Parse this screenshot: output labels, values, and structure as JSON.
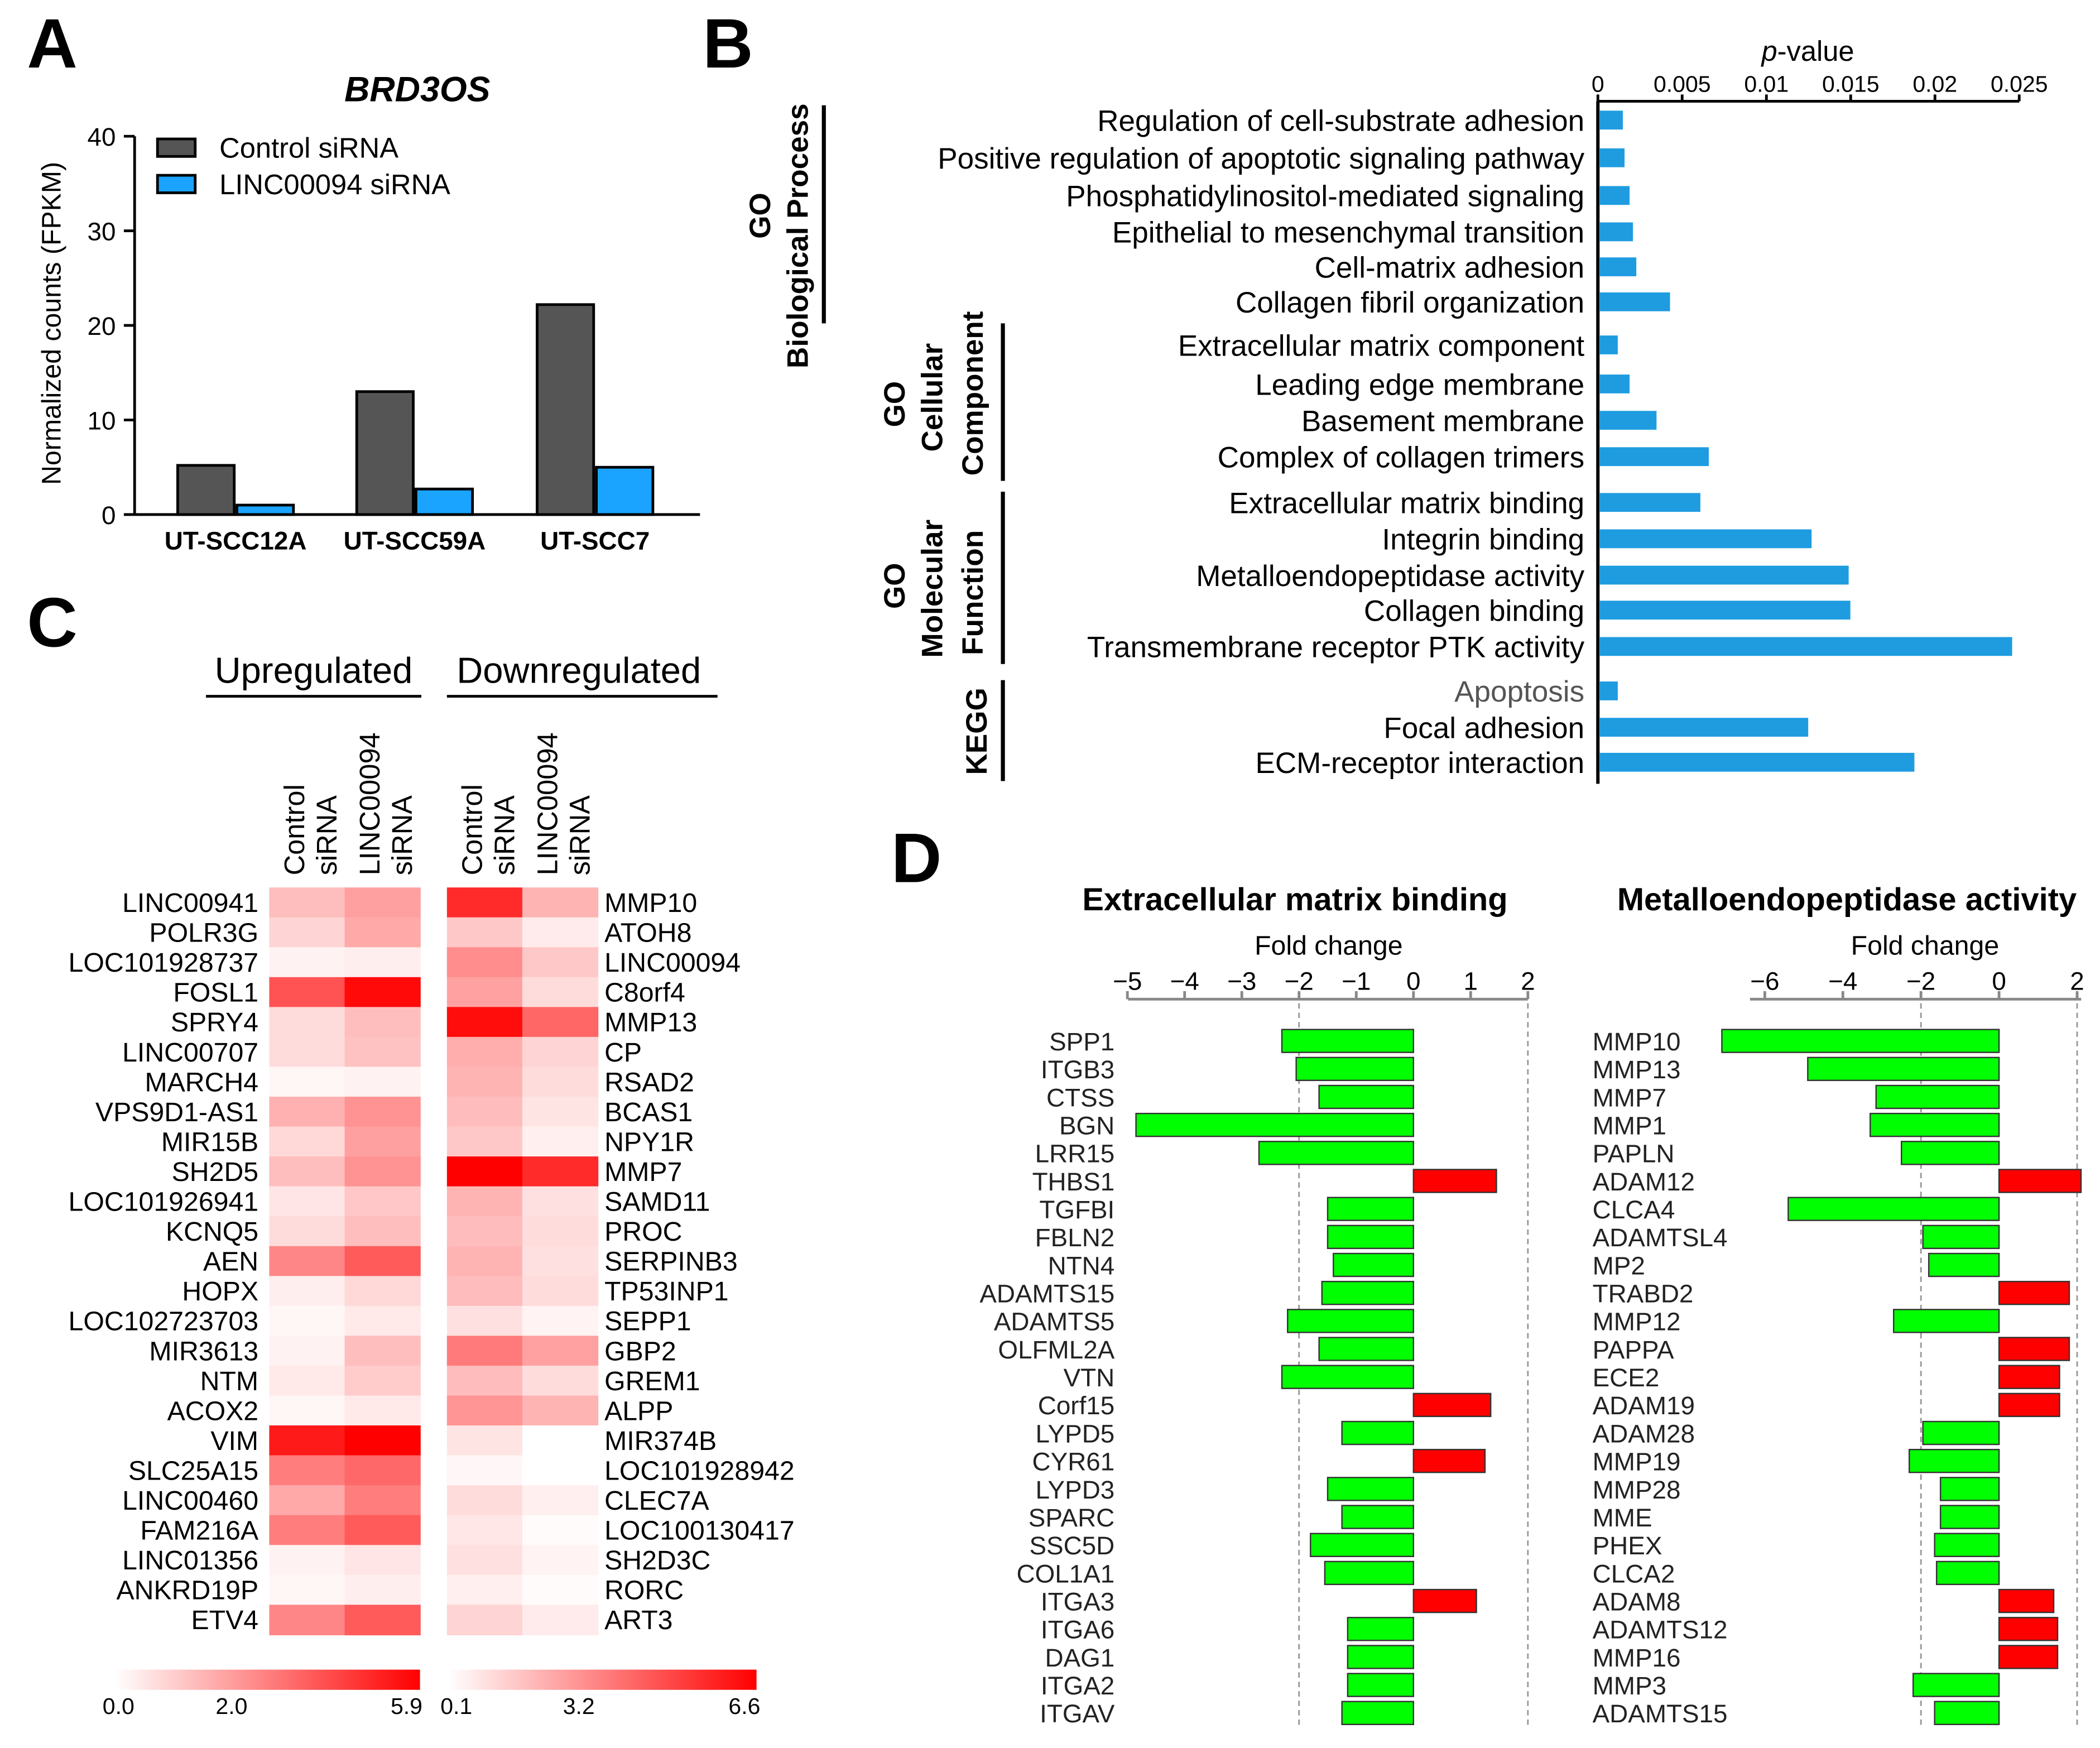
{
  "colors": {
    "control": "#555555",
    "linc": "#1aa3ff",
    "bbar": "#1f9ce0",
    "up": "#00ff00",
    "down": "#ff0000",
    "heat_max": "#ff0000"
  },
  "chart_data": [
    {
      "panel": "A",
      "type": "bar",
      "title": "BRD3OS",
      "ylabel": "Normalized counts (FPKM)",
      "ylim": [
        0,
        40
      ],
      "yticks": [
        "0",
        "10",
        "20",
        "30",
        "40"
      ],
      "categories": [
        "UT-SCC12A",
        "UT-SCC59A",
        "UT-SCC7"
      ],
      "series": [
        {
          "name": "Control siRNA",
          "values": [
            5.2,
            13,
            22.2
          ]
        },
        {
          "name": "LINC00094 siRNA",
          "values": [
            1,
            2.7,
            5
          ]
        }
      ],
      "legend": "top-left"
    },
    {
      "panel": "B",
      "type": "bar",
      "orientation": "horizontal",
      "xlabel_prefix": "p",
      "xlabel_suffix": "-value",
      "xlim": [
        0,
        0.025
      ],
      "xticks": [
        "0",
        "0.005",
        "0.01",
        "0.015",
        "0.02",
        "0.025"
      ],
      "groups": [
        {
          "label1": "GO",
          "label2": "Biological Process"
        },
        {
          "label1": "GO",
          "label2": "Cellular",
          "label3": "Component"
        },
        {
          "label1": "GO",
          "label2": "Molecular",
          "label3": "Function"
        },
        {
          "label1": "KEGG"
        }
      ],
      "categories": [
        "Regulation of cell-substrate adhesion",
        "Positive regulation of apoptotic signaling pathway",
        "Phosphatidylinositol-mediated signaling",
        "Epithelial to mesenchymal transition",
        "Cell-matrix adhesion",
        "Collagen fibril organization",
        "Extracellular matrix component",
        "Leading edge membrane",
        "Basement membrane",
        "Complex of collagen trimers",
        "Extracellular matrix binding",
        "Integrin binding",
        "Metalloendopeptidase activity",
        "Collagen binding",
        "Transmembrane receptor PTK activity",
        "Apoptosis",
        "Focal adhesion",
        "ECM-receptor interaction"
      ],
      "values": [
        0.0014,
        0.0015,
        0.0018,
        0.002,
        0.0022,
        0.0042,
        0.0011,
        0.0018,
        0.0034,
        0.0065,
        0.006,
        0.0126,
        0.0148,
        0.0149,
        0.0245,
        0.0011,
        0.0124,
        0.0187
      ]
    },
    {
      "panel": "C",
      "type": "heatmap",
      "up_header": "Upregulated",
      "down_header": "Downregulated",
      "columns": [
        {
          "l1": "Control",
          "l2": "siRNA"
        },
        {
          "l1": "LINC00094",
          "l2": "siRNA"
        }
      ],
      "up_rows": [
        "LINC00941",
        "POLR3G",
        "LOC101928737",
        "FOSL1",
        "SPRY4",
        "LINC00707",
        "MARCH4",
        "VPS9D1-AS1",
        "MIR15B",
        "SH2D5",
        "LOC101926941",
        "KCNQ5",
        "AEN",
        "HOPX",
        "LOC102723703",
        "MIR3613",
        "NTM",
        "ACOX2",
        "VIM",
        "SLC25A15",
        "LINC00460",
        "FAM216A",
        "LINC01356",
        "ANKRD19P",
        "ETV4"
      ],
      "up_values": [
        [
          1.5,
          2.2
        ],
        [
          1.0,
          2.0
        ],
        [
          0.3,
          0.4
        ],
        [
          4.0,
          5.7
        ],
        [
          0.8,
          1.5
        ],
        [
          0.8,
          1.4
        ],
        [
          0.2,
          0.3
        ],
        [
          1.8,
          2.5
        ],
        [
          0.9,
          2.2
        ],
        [
          1.5,
          2.5
        ],
        [
          0.6,
          1.3
        ],
        [
          0.8,
          1.5
        ],
        [
          2.8,
          3.8
        ],
        [
          0.4,
          0.9
        ],
        [
          0.2,
          0.5
        ],
        [
          0.3,
          1.5
        ],
        [
          0.5,
          1.2
        ],
        [
          0.2,
          0.5
        ],
        [
          5.3,
          5.9
        ],
        [
          3.0,
          3.5
        ],
        [
          2.0,
          3.0
        ],
        [
          3.0,
          3.8
        ],
        [
          0.3,
          0.6
        ],
        [
          0.2,
          0.4
        ],
        [
          2.8,
          3.8
        ]
      ],
      "up_scale": {
        "min": 0,
        "max": 5.9,
        "labels": [
          "0.0",
          "2.0",
          "5.9"
        ]
      },
      "down_rows": [
        "MMP10",
        "ATOH8",
        "LINC00094",
        "C8orf4",
        "MMP13",
        "CP",
        "RSAD2",
        "BCAS1",
        "NPY1R",
        "MMP7",
        "SAMD11",
        "PROC",
        "SERPINB3",
        "TP53INP1",
        "SEPP1",
        "GBP2",
        "GREM1",
        "ALPP",
        "MIR374B",
        "LOC101928942",
        "CLEC7A",
        "LOC100130417",
        "SH2D3C",
        "RORC",
        "ART3"
      ],
      "down_values": [
        [
          5.5,
          2.0
        ],
        [
          1.5,
          0.6
        ],
        [
          3.0,
          1.5
        ],
        [
          2.5,
          1.0
        ],
        [
          6.3,
          4.0
        ],
        [
          2.2,
          1.2
        ],
        [
          2.0,
          1.0
        ],
        [
          1.8,
          0.8
        ],
        [
          1.5,
          0.5
        ],
        [
          6.6,
          5.5
        ],
        [
          2.0,
          0.9
        ],
        [
          1.8,
          1.0
        ],
        [
          2.0,
          0.9
        ],
        [
          1.8,
          1.0
        ],
        [
          0.9,
          0.4
        ],
        [
          3.5,
          2.5
        ],
        [
          1.8,
          1.0
        ],
        [
          2.8,
          2.0
        ],
        [
          0.8,
          0.1
        ],
        [
          0.3,
          0.1
        ],
        [
          1.0,
          0.5
        ],
        [
          0.7,
          0.2
        ],
        [
          0.9,
          0.4
        ],
        [
          0.5,
          0.2
        ],
        [
          1.2,
          0.6
        ]
      ],
      "down_scale": {
        "min": 0.1,
        "max": 6.6,
        "labels": [
          "0.1",
          "3.2",
          "6.6"
        ]
      }
    },
    {
      "panel": "D",
      "type": "bar",
      "orientation": "horizontal",
      "title": "Extracellular matrix binding",
      "xlabel": "Fold change",
      "xlim": [
        -5,
        2
      ],
      "xticks": [
        "−5",
        "−4",
        "−3",
        "−2",
        "−1",
        "0",
        "1",
        "2"
      ],
      "categories": [
        "SPP1",
        "ITGB3",
        "CTSS",
        "BGN",
        "LRR15",
        "THBS1",
        "TGFBI",
        "FBLN2",
        "NTN4",
        "ADAMTS15",
        "ADAMTS5",
        "OLFML2A",
        "VTN",
        "Corf15",
        "LYPD5",
        "CYR61",
        "LYPD3",
        "SPARC",
        "SSC5D",
        "COL1A1",
        "ITGA3",
        "ITGA6",
        "DAG1",
        "ITGA2",
        "ITGAV"
      ],
      "values": [
        -2.3,
        -2.05,
        -1.65,
        -4.85,
        -2.7,
        1.45,
        -1.5,
        -1.5,
        -1.4,
        -1.6,
        -2.2,
        -1.65,
        -2.3,
        1.35,
        -1.25,
        1.25,
        -1.5,
        -1.25,
        -1.8,
        -1.55,
        1.1,
        -1.15,
        -1.15,
        -1.15,
        -1.25
      ]
    },
    {
      "panel": "D",
      "type": "bar",
      "orientation": "horizontal",
      "title": "Metalloendopeptidase activity",
      "xlabel": "Fold change",
      "xlim": [
        -7.2,
        2.1
      ],
      "xticks": [
        "−6",
        "−4",
        "−2",
        "0",
        "2"
      ],
      "categories": [
        "MMP10",
        "MMP13",
        "MMP7",
        "MMP1",
        "PAPLN",
        "ADAM12",
        "CLCA4",
        "ADAMTSL4",
        "MP2",
        "TRABD2",
        "MMP12",
        "PAPPA",
        "ECE2",
        "ADAM19",
        "ADAM28",
        "MMP19",
        "MMP28",
        "MME",
        "PHEX",
        "CLCA2",
        "ADAM8",
        "ADAMTS12",
        "MMP16",
        "MMP3",
        "ADAMTS15"
      ],
      "values": [
        -7.1,
        -4.9,
        -3.15,
        -3.3,
        -2.5,
        2.1,
        -5.4,
        -1.95,
        -1.8,
        1.8,
        -2.7,
        1.8,
        1.55,
        1.55,
        -1.95,
        -2.3,
        -1.5,
        -1.5,
        -1.65,
        -1.6,
        1.4,
        1.5,
        1.5,
        -2.2,
        -1.65
      ]
    }
  ],
  "panel_letters": [
    "A",
    "B",
    "C",
    "D"
  ]
}
